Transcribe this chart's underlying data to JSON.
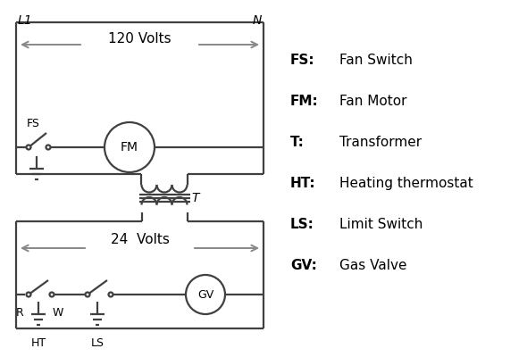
{
  "bg_color": "#ffffff",
  "line_color": "#404040",
  "arrow_color": "#888888",
  "text_color": "#000000",
  "lw": 1.6,
  "legend_items": [
    [
      "FS:",
      "Fan Switch"
    ],
    [
      "FM:",
      "Fan Motor"
    ],
    [
      "T:",
      "Transformer"
    ],
    [
      "HT:",
      "Heating thermostat"
    ],
    [
      "LS:",
      "Limit Switch"
    ],
    [
      "GV:",
      "Gas Valve"
    ]
  ],
  "figsize": [
    5.9,
    4.0
  ],
  "dpi": 100
}
